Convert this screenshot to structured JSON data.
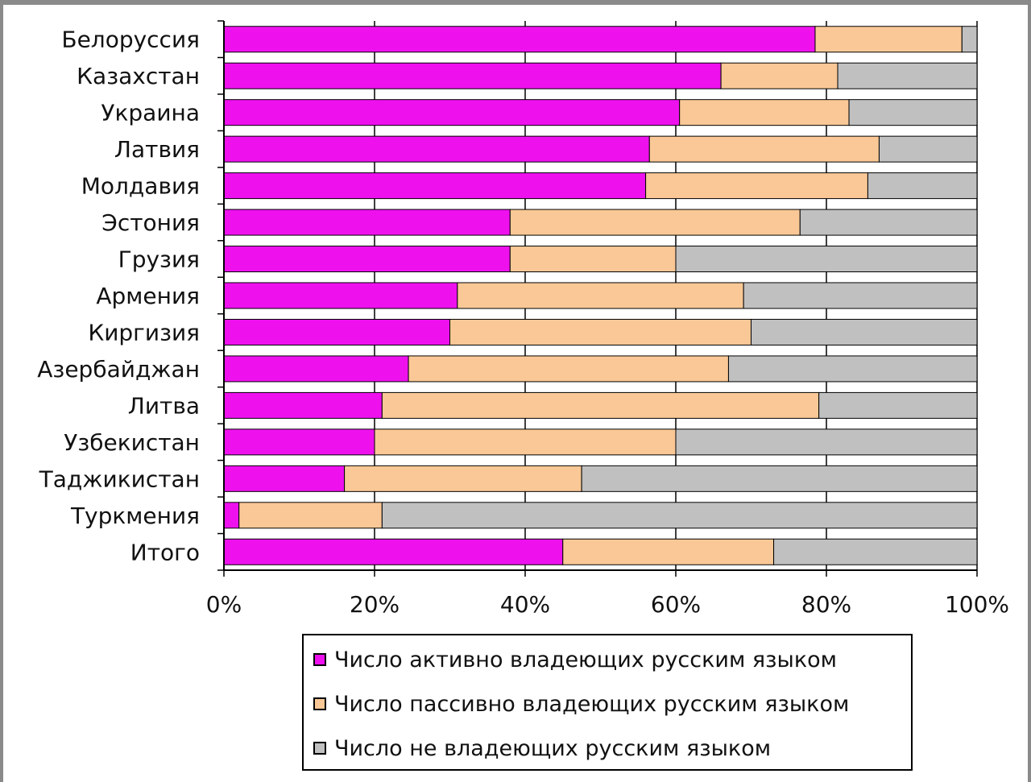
{
  "chart_data": {
    "type": "bar",
    "orientation": "horizontal",
    "stacked": "percent",
    "categories": [
      "Белоруссия",
      "Казахстан",
      "Украина",
      "Латвия",
      "Молдавия",
      "Эстония",
      "Грузия",
      "Армения",
      "Киргизия",
      "Азербайджан",
      "Литва",
      "Узбекистан",
      "Таджикистан",
      "Туркмения",
      "Итого"
    ],
    "series": [
      {
        "name": "Число активно владеющих русским языком",
        "color": "#ee11ee",
        "values": [
          78.5,
          66,
          60.5,
          56.5,
          56,
          38,
          38,
          31,
          30,
          24.5,
          21,
          20,
          16,
          2,
          45
        ]
      },
      {
        "name": "Число пассивно владеющих русским языком",
        "color": "#f9c896",
        "values": [
          19.5,
          15.5,
          22.5,
          30.5,
          29.5,
          38.5,
          22,
          38,
          40,
          42.5,
          58,
          40,
          31.5,
          19,
          28
        ]
      },
      {
        "name": "Число не владеющих русским языком",
        "color": "#c0c0c0",
        "values": [
          2,
          18.5,
          17,
          13,
          14.5,
          23.5,
          40,
          31,
          30,
          33,
          21,
          40,
          52.5,
          79,
          27
        ]
      }
    ],
    "xlim": [
      0,
      100
    ],
    "x_ticks": [
      "0%",
      "20%",
      "40%",
      "60%",
      "80%",
      "100%"
    ],
    "grid": true,
    "legend_position": "bottom"
  }
}
